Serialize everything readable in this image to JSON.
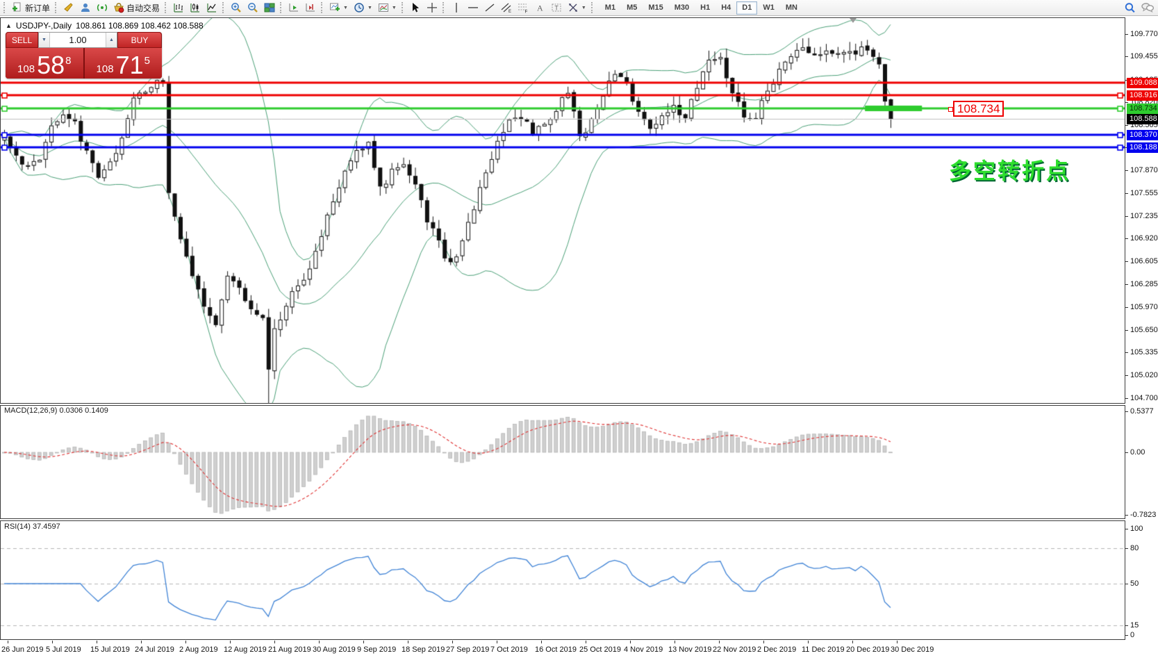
{
  "toolbar": {
    "new_order": "新订单",
    "auto_trading": "自动交易",
    "timeframes": [
      "M1",
      "M5",
      "M15",
      "M30",
      "H1",
      "H4",
      "D1",
      "W1",
      "MN"
    ],
    "active_timeframe": "D1"
  },
  "chart": {
    "collapse_arrow": "▲",
    "symbol": "USDJPY-,Daily",
    "ohlc_readout": "108.861 108.869 108.462 108.588"
  },
  "one_click": {
    "sell_label": "SELL",
    "buy_label": "BUY",
    "volume": "1.00",
    "sell_price": {
      "prefix": "108",
      "big": "58",
      "sup": "8"
    },
    "buy_price": {
      "prefix": "108",
      "big": "71",
      "sup": "5"
    }
  },
  "annotation": {
    "text": "多空转折点",
    "color": "#2ede2e"
  },
  "line_label": {
    "text": "108.734"
  },
  "price_axis": {
    "ticks": [
      "109.770",
      "109.455",
      "109.135",
      "108.820",
      "108.505",
      "108.190",
      "107.870",
      "107.555",
      "107.235",
      "106.920",
      "106.605",
      "106.285",
      "105.970",
      "105.650",
      "105.335",
      "105.020",
      "104.700"
    ],
    "badges": [
      {
        "text": "109.088",
        "price": 109.088,
        "bg": "#ee0000",
        "fg": "#ffffff"
      },
      {
        "text": "108.916",
        "price": 108.916,
        "bg": "#ee0000",
        "fg": "#ffffff"
      },
      {
        "text": "108.734",
        "price": 108.734,
        "bg": "#2ecc2e",
        "fg": "#062806"
      },
      {
        "text": "108.588",
        "price": 108.588,
        "bg": "#000000",
        "fg": "#ffffff"
      },
      {
        "text": "108.370",
        "price": 108.37,
        "bg": "#0000ee",
        "fg": "#ffffff"
      },
      {
        "text": "108.188",
        "price": 108.188,
        "bg": "#0000ee",
        "fg": "#ffffff"
      }
    ]
  },
  "macd_panel": {
    "label": "MACD(12,26,9) 0.0306 0.1409",
    "axis_max": "0.5377",
    "axis_zero": "0.00",
    "axis_min": "-0.7823"
  },
  "rsi_panel": {
    "label": "RSI(14) 37.4597",
    "axis_top": "100",
    "axis_bottom": "0",
    "levels": [
      80,
      50,
      15
    ]
  },
  "date_axis": [
    "26 Jun 2019",
    "5 Jul 2019",
    "15 Jul 2019",
    "24 Jul 2019",
    "2 Aug 2019",
    "12 Aug 2019",
    "21 Aug 2019",
    "30 Aug 2019",
    "9 Sep 2019",
    "18 Sep 2019",
    "27 Sep 2019",
    "7 Oct 2019",
    "16 Oct 2019",
    "25 Oct 2019",
    "4 Nov 2019",
    "13 Nov 2019",
    "22 Nov 2019",
    "2 Dec 2019",
    "11 Dec 2019",
    "20 Dec 2019",
    "30 Dec 2019"
  ],
  "chart_data": {
    "type": "candlestick",
    "symbol": "USDJPY",
    "timeframe": "Daily",
    "bar_count": 152,
    "last_bar": {
      "open": 108.861,
      "high": 108.869,
      "low": 108.462,
      "close": 108.588
    },
    "bid": 108.588,
    "price_range_visible": [
      104.7,
      109.99
    ],
    "price_keypoints": [
      [
        0,
        108.3
      ],
      [
        2,
        108.1
      ],
      [
        4,
        107.9
      ],
      [
        6,
        108.05
      ],
      [
        8,
        108.5
      ],
      [
        10,
        108.7
      ],
      [
        12,
        108.55
      ],
      [
        14,
        108.1
      ],
      [
        16,
        107.8
      ],
      [
        18,
        107.95
      ],
      [
        20,
        108.3
      ],
      [
        22,
        108.85
      ],
      [
        24,
        109.0
      ],
      [
        26,
        109.1
      ],
      [
        27,
        109.05
      ],
      [
        28,
        107.55
      ],
      [
        30,
        106.9
      ],
      [
        32,
        106.45
      ],
      [
        34,
        105.95
      ],
      [
        36,
        105.7
      ],
      [
        38,
        106.35
      ],
      [
        40,
        106.2
      ],
      [
        42,
        105.9
      ],
      [
        44,
        105.8
      ],
      [
        45,
        105.1
      ],
      [
        46,
        105.65
      ],
      [
        48,
        106.0
      ],
      [
        50,
        106.3
      ],
      [
        52,
        106.5
      ],
      [
        55,
        107.25
      ],
      [
        58,
        107.85
      ],
      [
        60,
        108.15
      ],
      [
        62,
        108.3
      ],
      [
        64,
        107.6
      ],
      [
        66,
        107.85
      ],
      [
        68,
        108.0
      ],
      [
        70,
        107.65
      ],
      [
        72,
        107.2
      ],
      [
        74,
        106.85
      ],
      [
        76,
        106.55
      ],
      [
        78,
        106.9
      ],
      [
        80,
        107.35
      ],
      [
        82,
        107.85
      ],
      [
        84,
        108.3
      ],
      [
        86,
        108.55
      ],
      [
        88,
        108.6
      ],
      [
        90,
        108.4
      ],
      [
        92,
        108.55
      ],
      [
        94,
        108.7
      ],
      [
        96,
        109.0
      ],
      [
        98,
        108.3
      ],
      [
        100,
        108.6
      ],
      [
        102,
        108.95
      ],
      [
        104,
        109.2
      ],
      [
        106,
        109.05
      ],
      [
        108,
        108.7
      ],
      [
        110,
        108.4
      ],
      [
        112,
        108.6
      ],
      [
        114,
        108.75
      ],
      [
        116,
        108.6
      ],
      [
        118,
        109.05
      ],
      [
        120,
        109.45
      ],
      [
        122,
        109.4
      ],
      [
        124,
        108.95
      ],
      [
        126,
        108.6
      ],
      [
        128,
        108.65
      ],
      [
        130,
        108.95
      ],
      [
        132,
        109.3
      ],
      [
        134,
        109.5
      ],
      [
        136,
        109.6
      ],
      [
        138,
        109.5
      ],
      [
        140,
        109.55
      ],
      [
        142,
        109.45
      ],
      [
        144,
        109.5
      ],
      [
        146,
        109.55
      ],
      [
        148,
        109.45
      ],
      [
        149,
        109.4
      ],
      [
        150,
        108.85
      ],
      [
        151,
        108.588
      ]
    ],
    "horizontal_lines": [
      {
        "price": 109.088,
        "color": "#ee0000",
        "width": 3,
        "handles": false
      },
      {
        "price": 108.916,
        "color": "#ee0000",
        "width": 3,
        "handles": true
      },
      {
        "price": 108.734,
        "color": "#2ecc2e",
        "width": 3,
        "handles": true
      },
      {
        "price": 108.37,
        "color": "#0000ee",
        "width": 3,
        "handles": true
      },
      {
        "price": 108.188,
        "color": "#0000ee",
        "width": 3,
        "handles": true
      }
    ],
    "bid_line": {
      "price": 108.588,
      "color": "#c0c0c0"
    },
    "highlight_segment": {
      "price": 108.734,
      "bar_start": 147,
      "bar_end": 156,
      "color": "#2ecc2e"
    },
    "indicators": {
      "bollinger": {
        "period": 20,
        "deviation": 2,
        "color": "#4aa077"
      },
      "macd": {
        "fast": 12,
        "slow": 26,
        "signal": 9,
        "main_value": 0.0306,
        "signal_value": 0.1409,
        "axis_max": 0.5377,
        "axis_min": -0.7823,
        "histogram_color": "#cfcfcf",
        "signal_color": "#e03131"
      },
      "rsi": {
        "period": 14,
        "value": 37.4597,
        "levels": [
          80,
          50,
          15
        ],
        "color": "#3f83d6"
      }
    }
  }
}
